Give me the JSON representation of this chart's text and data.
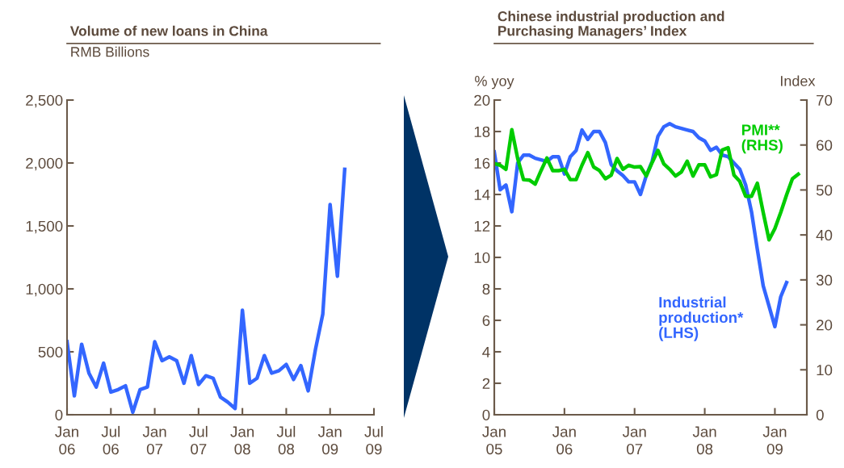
{
  "chart_data": [
    {
      "type": "line",
      "title": "Volume of new loans in China",
      "subtitle": "RMB Billions",
      "x": [
        "2006-01",
        "2006-02",
        "2006-03",
        "2006-04",
        "2006-05",
        "2006-06",
        "2006-07",
        "2006-08",
        "2006-09",
        "2006-10",
        "2006-11",
        "2006-12",
        "2007-01",
        "2007-02",
        "2007-03",
        "2007-04",
        "2007-05",
        "2007-06",
        "2007-07",
        "2007-08",
        "2007-09",
        "2007-10",
        "2007-11",
        "2007-12",
        "2008-01",
        "2008-02",
        "2008-03",
        "2008-04",
        "2008-05",
        "2008-06",
        "2008-07",
        "2008-08",
        "2008-09",
        "2008-10",
        "2008-11",
        "2008-12",
        "2009-01",
        "2009-02",
        "2009-03"
      ],
      "series": [
        {
          "color": "#3366ff",
          "values": [
            580,
            150,
            560,
            330,
            220,
            410,
            180,
            200,
            230,
            20,
            200,
            220,
            580,
            430,
            460,
            430,
            250,
            470,
            240,
            310,
            290,
            140,
            100,
            50,
            830,
            250,
            290,
            470,
            330,
            350,
            400,
            280,
            390,
            190,
            520,
            800,
            1670,
            1100,
            1950
          ]
        }
      ],
      "xlim": [
        "2006-01",
        "2009-07"
      ],
      "xticks": [
        {
          "value": "2006-01",
          "label": "Jan\n06"
        },
        {
          "value": "2006-07",
          "label": "Jul\n06"
        },
        {
          "value": "2007-01",
          "label": "Jan\n07"
        },
        {
          "value": "2007-07",
          "label": "Jul\n07"
        },
        {
          "value": "2008-01",
          "label": "Jan\n08"
        },
        {
          "value": "2008-07",
          "label": "Jul\n08"
        },
        {
          "value": "2009-01",
          "label": "Jan\n09"
        },
        {
          "value": "2009-07",
          "label": "Jul\n09"
        }
      ],
      "ylim": [
        0,
        2500
      ],
      "yticks": [
        0,
        500,
        {
          "value": 1000,
          "label": "1,000"
        },
        {
          "value": 1500,
          "label": "1,500"
        },
        {
          "value": 2000,
          "label": "2,000"
        },
        {
          "value": 2500,
          "label": "2,500"
        }
      ],
      "grid": false,
      "legend": false,
      "marker": "none",
      "line_style": "solid"
    },
    {
      "type": "line",
      "title": "Chinese industrial production and\nPurchasing Managers’ Index",
      "ylabel": "% yoy",
      "y2label": "Index",
      "x": [
        "2005-01",
        "2005-02",
        "2005-03",
        "2005-04",
        "2005-05",
        "2005-06",
        "2005-07",
        "2005-08",
        "2005-09",
        "2005-10",
        "2005-11",
        "2005-12",
        "2006-01",
        "2006-02",
        "2006-03",
        "2006-04",
        "2006-05",
        "2006-06",
        "2006-07",
        "2006-08",
        "2006-09",
        "2006-10",
        "2006-11",
        "2006-12",
        "2007-01",
        "2007-02",
        "2007-03",
        "2007-04",
        "2007-05",
        "2007-06",
        "2007-07",
        "2007-08",
        "2007-09",
        "2007-10",
        "2007-11",
        "2007-12",
        "2008-01",
        "2008-02",
        "2008-03",
        "2008-04",
        "2008-05",
        "2008-06",
        "2008-07",
        "2008-08",
        "2008-09",
        "2008-10",
        "2008-11",
        "2008-12",
        "2009-01",
        "2009-02",
        "2009-03",
        "2009-04",
        "2009-05"
      ],
      "series": [
        {
          "name": "Industrial\nproduction*\n(LHS)",
          "color": "#3366ff",
          "values": [
            16.7,
            14.3,
            14.6,
            12.9,
            16.0,
            16.5,
            16.5,
            16.3,
            16.2,
            16.1,
            16.4,
            16.4,
            15.3,
            16.4,
            16.8,
            18.1,
            17.5,
            18.0,
            18.0,
            17.3,
            15.9,
            15.5,
            15.2,
            14.8,
            14.8,
            14.0,
            15.2,
            16.1,
            17.7,
            18.3,
            18.5,
            18.3,
            18.2,
            18.1,
            18.0,
            17.6,
            17.4,
            16.8,
            17.0,
            16.5,
            16.4,
            16.0,
            15.6,
            14.6,
            12.9,
            10.5,
            8.2,
            6.9,
            5.6,
            7.5,
            8.4,
            null,
            null
          ]
        },
        {
          "name": "PMI**\n(RHS)",
          "color": "#00cc00",
          "axis": "y2",
          "values": [
            55.9,
            55.5,
            54.6,
            63.4,
            57.0,
            52.3,
            52.2,
            51.3,
            54.3,
            57.1,
            54.3,
            54.3,
            54.6,
            52.3,
            52.3,
            55.5,
            58.3,
            55.1,
            54.3,
            52.5,
            53.3,
            57.0,
            54.6,
            55.5,
            55.1,
            55.2,
            53.1,
            56.1,
            58.8,
            55.8,
            54.6,
            53.1,
            54.0,
            56.4,
            53.1,
            55.6,
            55.6,
            52.9,
            53.4,
            58.9,
            59.4,
            53.3,
            51.9,
            48.6,
            48.6,
            51.5,
            45.0,
            38.9,
            41.4,
            45.0,
            48.9,
            52.5,
            53.5
          ]
        }
      ],
      "xlim": [
        "2005-01",
        "2009-06-15"
      ],
      "xticks": [
        {
          "value": "2005-01",
          "label": "Jan\n05"
        },
        {
          "value": "2006-01",
          "label": "Jan\n06"
        },
        {
          "value": "2007-01",
          "label": "Jan\n07"
        },
        {
          "value": "2008-01",
          "label": "Jan\n08"
        },
        {
          "value": "2009-01",
          "label": "Jan\n09"
        }
      ],
      "ylim": [
        0,
        20
      ],
      "yticks": [
        0,
        2,
        4,
        6,
        8,
        10,
        12,
        14,
        16,
        18,
        20
      ],
      "y2lim": [
        0,
        70
      ],
      "y2ticks": [
        0,
        10,
        20,
        30,
        40,
        50,
        60,
        70
      ],
      "grid": false,
      "legend": false,
      "marker": "none",
      "line_style": "solid"
    }
  ]
}
